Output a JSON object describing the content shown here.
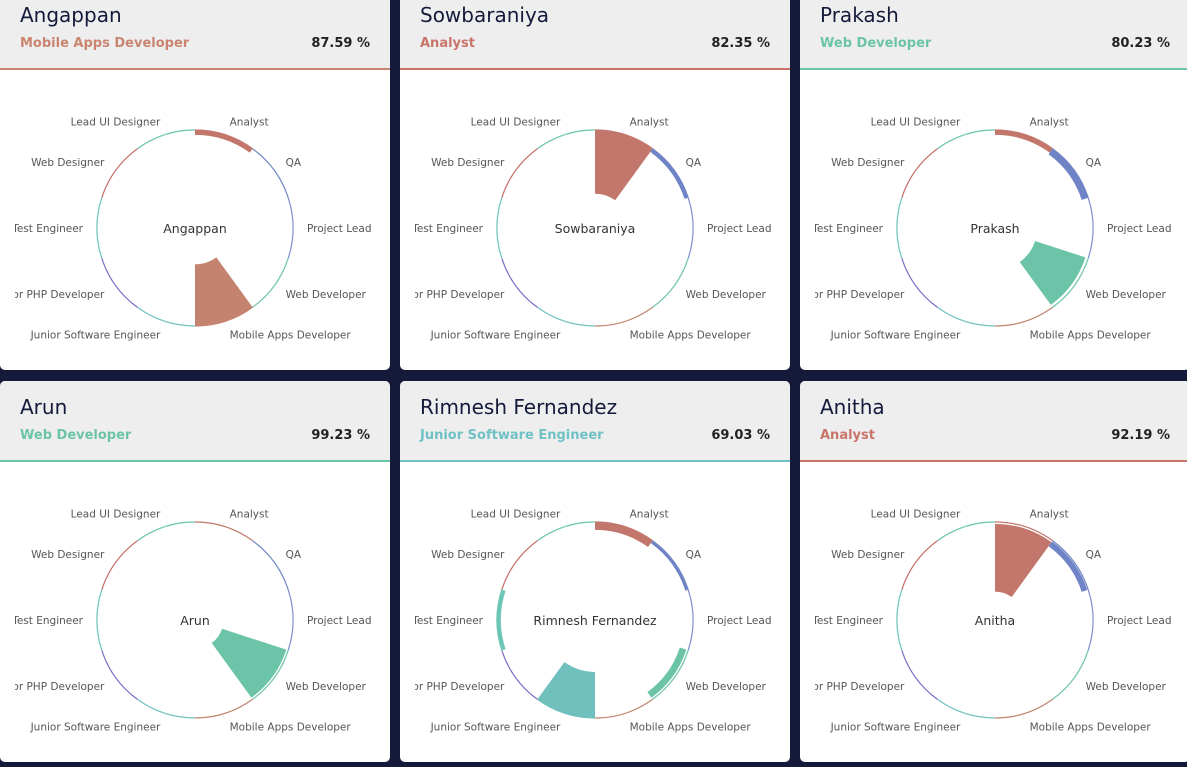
{
  "categories": [
    {
      "label": "Analyst",
      "color": "#c3776c"
    },
    {
      "label": "QA",
      "color": "#6f84c6"
    },
    {
      "label": "Project Lead",
      "color": "#7d8fd2"
    },
    {
      "label": "Web Developer",
      "color": "#6cc4a8"
    },
    {
      "label": "Mobile Apps Developer",
      "color": "#c3836f"
    },
    {
      "label": "Junior Software Engineer",
      "color": "#70c1be"
    },
    {
      "label": "Junior PHP Developer",
      "color": "#7a6ec6"
    },
    {
      "label": "Test Engineer",
      "color": "#6cc6b8"
    },
    {
      "label": "Web Designer",
      "color": "#c86e6c"
    },
    {
      "label": "Lead UI Designer",
      "color": "#6cc4b0"
    }
  ],
  "cards": [
    {
      "name": "Angappan",
      "role": "Mobile Apps Developer",
      "role_color": "#c98570",
      "percent": "87.59 %",
      "values": [
        [
          0.95,
          1
        ],
        null,
        null,
        null,
        [
          0.37,
          1
        ],
        null,
        null,
        null,
        null,
        null
      ]
    },
    {
      "name": "Sowbaraniya",
      "role": "Analyst",
      "role_color": "#c8746b",
      "percent": "82.35 %",
      "values": [
        [
          0.35,
          1
        ],
        [
          0.96,
          1
        ],
        null,
        null,
        null,
        null,
        null,
        null,
        null,
        null
      ]
    },
    {
      "name": "Prakash",
      "role": "Web Developer",
      "role_color": "#6cc4a8",
      "percent": "80.23 %",
      "values": [
        [
          0.95,
          1
        ],
        [
          0.93,
          1
        ],
        null,
        [
          0.43,
          0.97
        ],
        null,
        null,
        null,
        null,
        null,
        null
      ]
    },
    {
      "name": "Arun",
      "role": "Web Developer",
      "role_color": "#6cc4a8",
      "percent": "99.23 %",
      "values": [
        null,
        null,
        null,
        [
          0.29,
          0.98
        ],
        null,
        null,
        null,
        null,
        null,
        null
      ]
    },
    {
      "name": "Rimnesh Fernandez",
      "role": "Junior Software Engineer",
      "role_color": "#6fc1c4",
      "percent": "69.03 %",
      "values": [
        [
          0.92,
          1
        ],
        [
          0.97,
          1
        ],
        null,
        [
          0.91,
          0.98
        ],
        null,
        [
          0.53,
          1
        ],
        null,
        [
          0.96,
          1
        ],
        null,
        null
      ]
    },
    {
      "name": "Anitha",
      "role": "Analyst",
      "role_color": "#c8746b",
      "percent": "92.19 %",
      "values": [
        [
          0.29,
          0.98
        ],
        [
          0.93,
          0.99
        ],
        null,
        null,
        null,
        null,
        null,
        null,
        null,
        null
      ]
    }
  ]
}
